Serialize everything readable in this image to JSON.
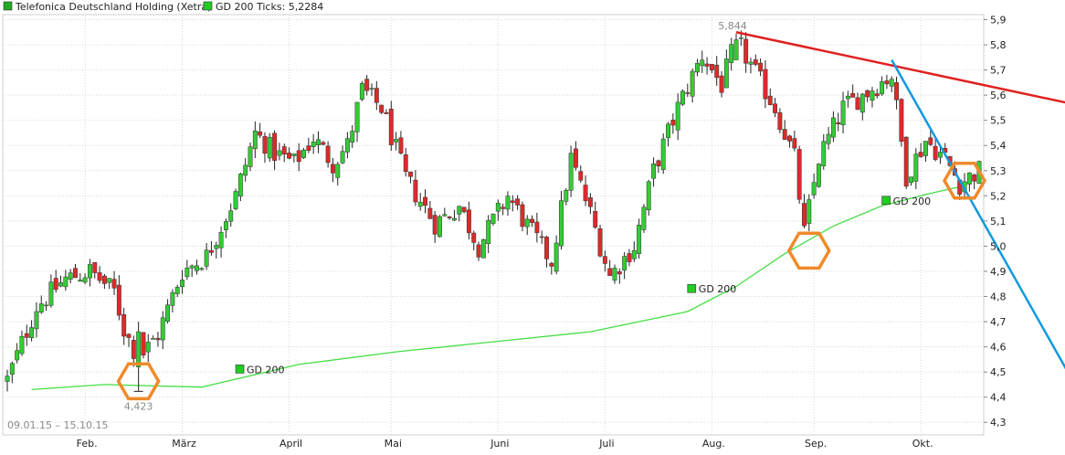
{
  "chart_data": {
    "type": "candlestick",
    "title": "",
    "legend": [
      {
        "label": "Telefonica Deutschland Holding (Xetra)",
        "color": "#22aa22"
      },
      {
        "label": "GD 200 Ticks: 5,2284",
        "color": "#22cc22"
      }
    ],
    "date_range": "09.01.15 – 15.10.15",
    "ylim": [
      4.25,
      5.92
    ],
    "y_ticks": [
      "4,3",
      "4,4",
      "4,5",
      "4,6",
      "4,7",
      "4,8",
      "4,9",
      "5,0",
      "5,1",
      "5,2",
      "5,3",
      "5,4",
      "5,5",
      "5,6",
      "5,7",
      "5,8",
      "5,9"
    ],
    "x_months": [
      "Feb.",
      "März",
      "April",
      "Mai",
      "Juni",
      "Juli",
      "Aug.",
      "Sep.",
      "Okt."
    ],
    "n_days": 201,
    "month_start_index": [
      16,
      36,
      58,
      79,
      101,
      123,
      145,
      166,
      188
    ],
    "annotations": {
      "low": {
        "label": "4,423",
        "index": 27,
        "value": 4.423
      },
      "high": {
        "label": "5,844",
        "index": 150,
        "value": 5.844
      }
    },
    "gd_labels": [
      "GD 200",
      "GD 200",
      "GD 200"
    ],
    "gd_label_value": [
      4.51,
      4.83,
      5.18
    ],
    "gd_label_index": [
      47,
      140,
      180
    ],
    "gd200": {
      "name": "GD 200",
      "color": "#44dd44",
      "index": [
        5,
        20,
        40,
        60,
        80,
        100,
        120,
        140,
        150,
        160,
        170,
        180,
        190,
        197
      ],
      "value": [
        4.43,
        4.45,
        4.44,
        4.53,
        4.58,
        4.62,
        4.66,
        4.74,
        4.84,
        4.97,
        5.08,
        5.16,
        5.21,
        5.24
      ]
    },
    "close_path": {
      "index": [
        0,
        6,
        12,
        17,
        22,
        24,
        27,
        31,
        36,
        41,
        47,
        51,
        55,
        59,
        63,
        67,
        70,
        73,
        77,
        82,
        88,
        93,
        97,
        103,
        107,
        112,
        116,
        120,
        124,
        129,
        133,
        138,
        143,
        147,
        150,
        153,
        158,
        162,
        164,
        167,
        172,
        176,
        182,
        185,
        189,
        193,
        196,
        200
      ],
      "value": [
        4.47,
        4.76,
        4.87,
        4.9,
        4.82,
        4.67,
        4.55,
        4.65,
        4.9,
        4.96,
        5.2,
        5.45,
        5.37,
        5.33,
        5.43,
        5.33,
        5.4,
        5.62,
        5.55,
        5.27,
        5.09,
        5.16,
        5.0,
        5.2,
        5.08,
        4.94,
        5.35,
        5.13,
        4.88,
        5.0,
        5.3,
        5.55,
        5.76,
        5.64,
        5.82,
        5.72,
        5.55,
        5.35,
        5.05,
        5.35,
        5.55,
        5.6,
        5.68,
        5.28,
        5.42,
        5.35,
        5.25,
        5.3
      ]
    },
    "trendlines": [
      {
        "color": "#e02020",
        "index": [
          150,
          201
        ],
        "value": [
          5.85,
          5.64
        ]
      },
      {
        "color": "#1199dd",
        "index": [
          182,
          201
        ],
        "value": [
          5.74,
          5.09
        ]
      }
    ],
    "highlights": [
      {
        "index": 27,
        "value": 4.463
      },
      {
        "index": 165,
        "value": 4.982
      },
      {
        "index": 197,
        "value": 5.26
      }
    ]
  }
}
